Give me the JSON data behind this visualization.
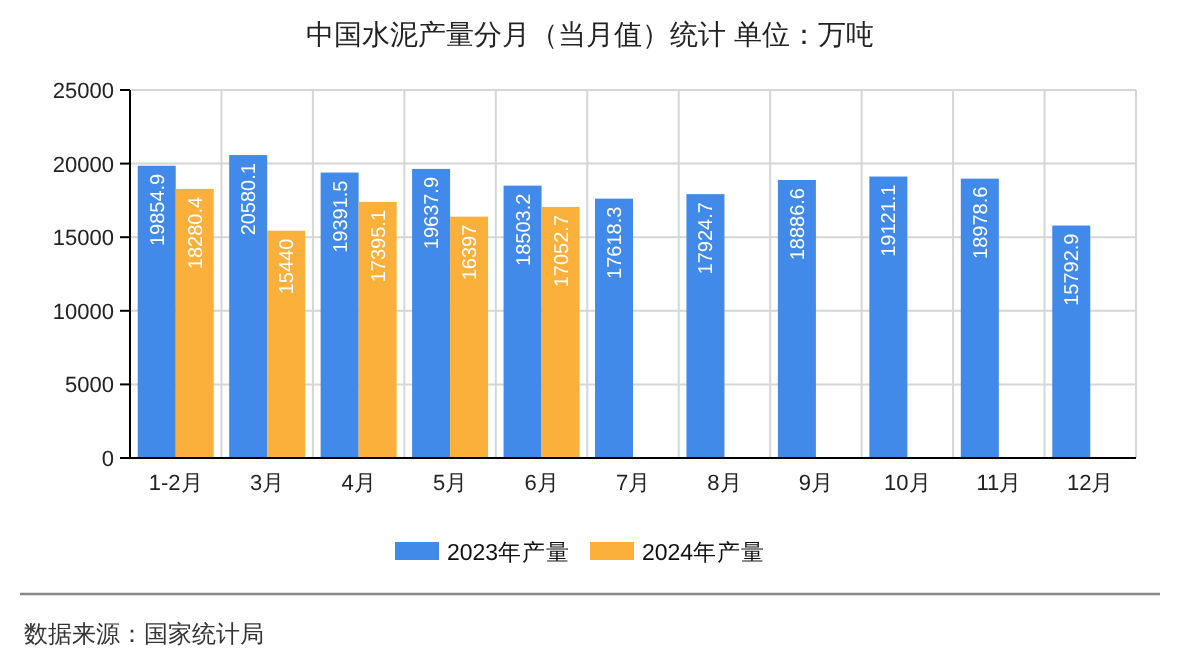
{
  "chart_data": {
    "type": "bar",
    "title": "中国水泥产量分月（当月值）统计 单位：万吨",
    "categories": [
      "1-2月",
      "3月",
      "4月",
      "5月",
      "6月",
      "7月",
      "8月",
      "9月",
      "10月",
      "11月",
      "12月"
    ],
    "series": [
      {
        "name": "2023年产量",
        "color": "#418ae9",
        "values": [
          19854.9,
          20580.1,
          19391.5,
          19637.9,
          18503.2,
          17618.3,
          17924.7,
          18886.6,
          19121.1,
          18978.6,
          15792.9
        ]
      },
      {
        "name": "2024年产量",
        "color": "#fbb03b",
        "values": [
          18280.4,
          15440,
          17395.1,
          16397,
          17052.7,
          null,
          null,
          null,
          null,
          null,
          null
        ]
      }
    ],
    "ylim": [
      0,
      25000
    ],
    "yticks": [
      0,
      5000,
      10000,
      15000,
      20000,
      25000
    ],
    "grid": true,
    "legend": "bottom",
    "data_labels": true,
    "annotations": [
      "数据来源：国家统计局"
    ]
  }
}
